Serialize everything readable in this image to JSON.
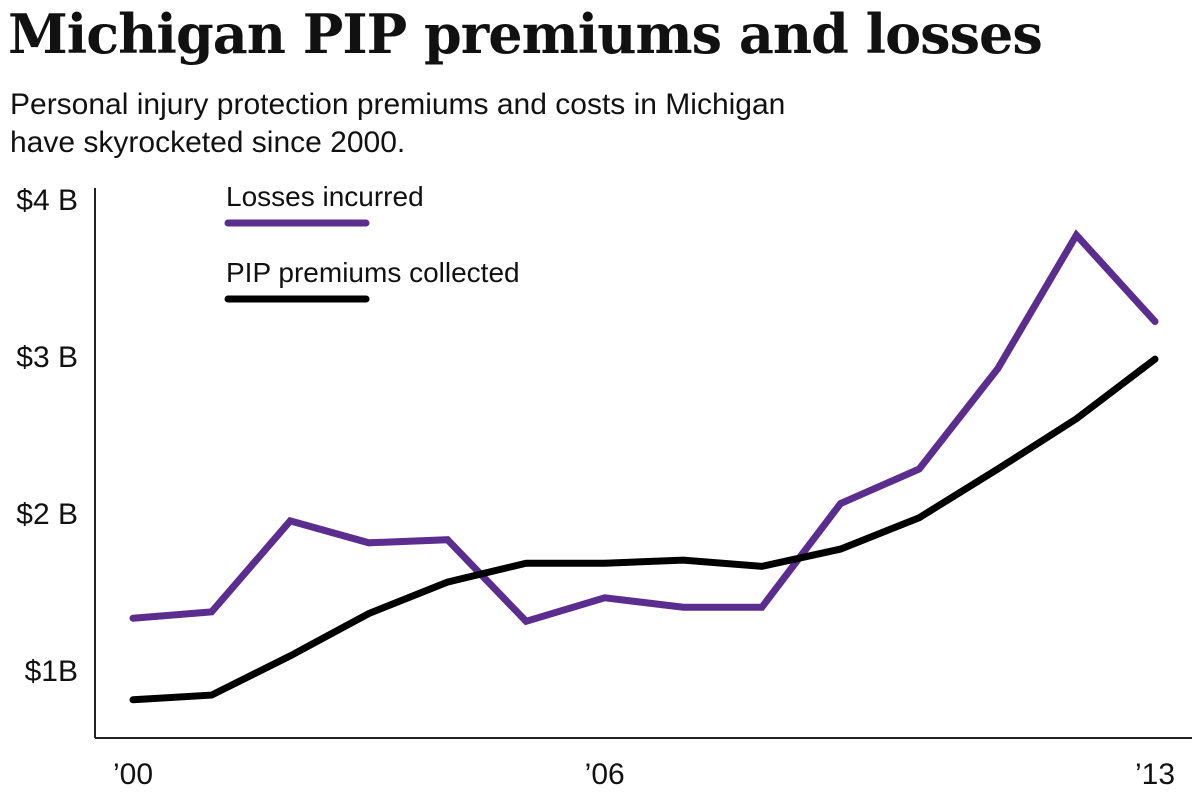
{
  "chart_data": {
    "type": "line",
    "title": "Michigan PIP premiums and losses",
    "subtitle": "Personal injury protection premiums and costs in Michigan have skyrocketed since 2000.",
    "x": [
      2000,
      2001,
      2002,
      2003,
      2004,
      2005,
      2006,
      2007,
      2008,
      2009,
      2010,
      2011,
      2012,
      2013
    ],
    "x_ticks": [
      {
        "value": 2000,
        "label": "’00"
      },
      {
        "value": 2006,
        "label": "’06"
      },
      {
        "value": 2013,
        "label": "’13"
      }
    ],
    "y_ticks": [
      {
        "value": 1,
        "label": "$1B"
      },
      {
        "value": 2,
        "label": "$2 B"
      },
      {
        "value": 3,
        "label": "$3 B"
      },
      {
        "value": 4,
        "label": "$4 B"
      }
    ],
    "xlim": [
      2000,
      2013
    ],
    "ylim": [
      0.5,
      4.0
    ],
    "grid": false,
    "legend_position": "top-left",
    "series": [
      {
        "name": "Losses incurred",
        "color": "#5b2d8e",
        "values": [
          1.33,
          1.37,
          1.95,
          1.81,
          1.83,
          1.31,
          1.46,
          1.4,
          1.4,
          2.06,
          2.28,
          2.92,
          3.77,
          3.22
        ]
      },
      {
        "name": "PIP premiums collected",
        "color": "#000000",
        "values": [
          0.81,
          0.84,
          1.09,
          1.36,
          1.56,
          1.68,
          1.68,
          1.7,
          1.66,
          1.77,
          1.97,
          2.28,
          2.6,
          2.98
        ]
      }
    ]
  }
}
